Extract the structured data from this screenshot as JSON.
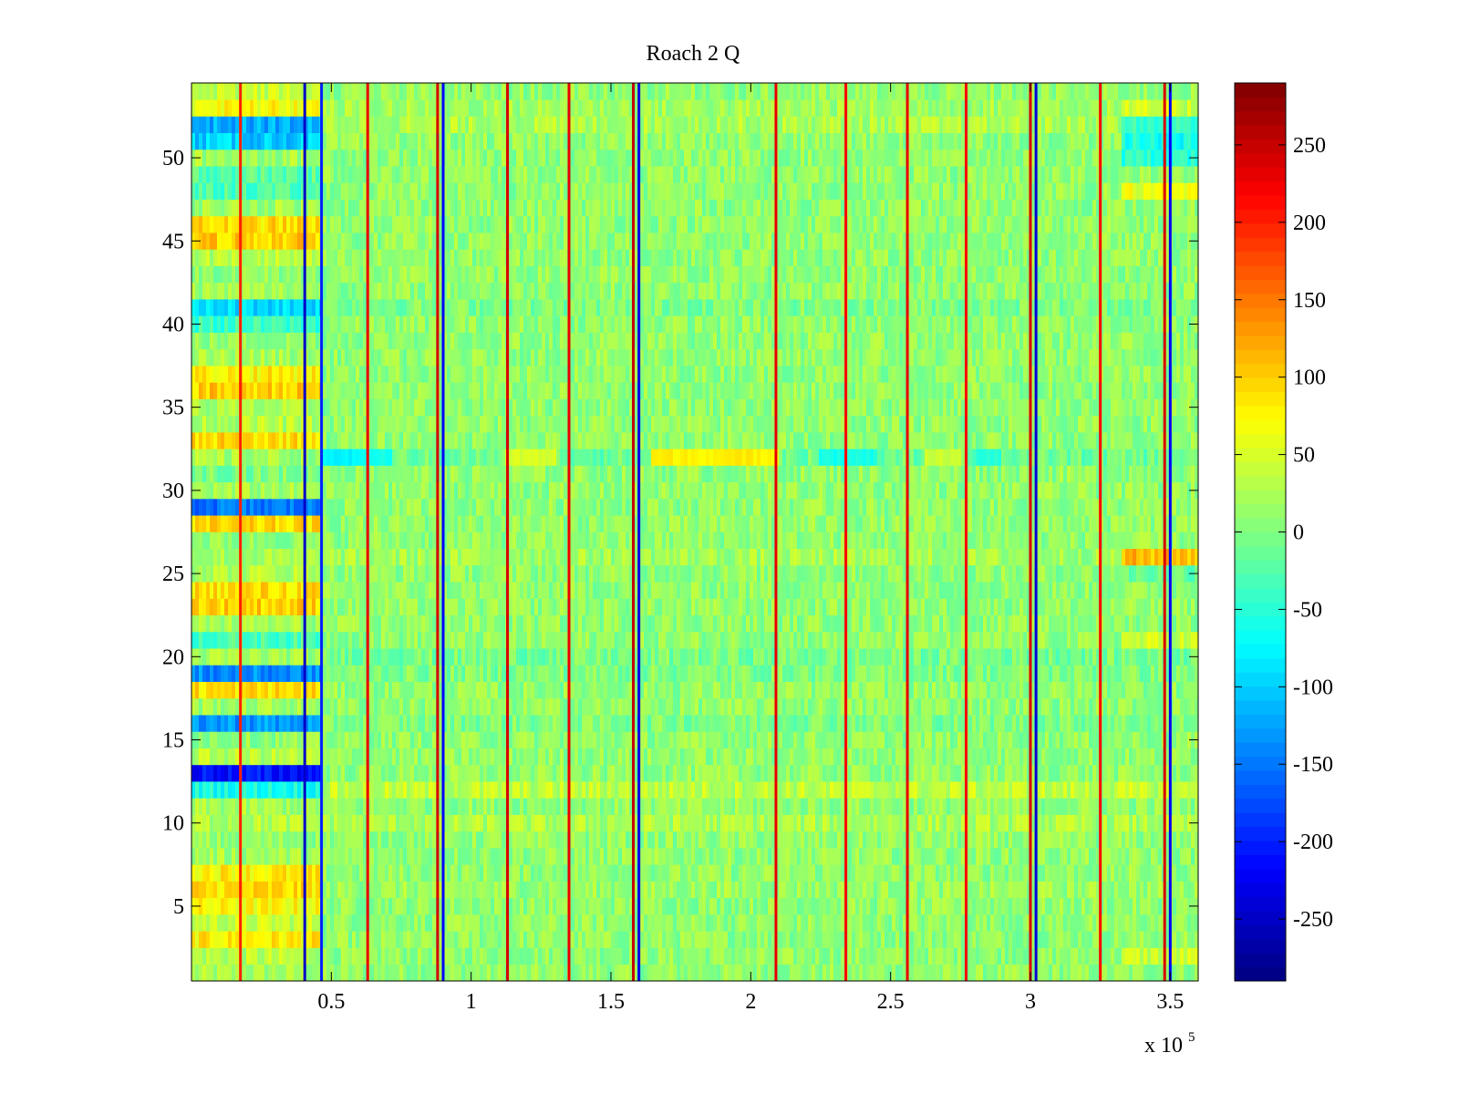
{
  "chart_data": {
    "type": "heatmap",
    "title": "Roach 2 Q",
    "xlabel": "",
    "ylabel": "",
    "x_multiplier_label": "x 10",
    "x_multiplier_exponent": "5",
    "xlim": [
      0,
      360000
    ],
    "ylim": [
      0.5,
      54.5
    ],
    "x_ticks": [
      {
        "value": 50000,
        "label": "0.5"
      },
      {
        "value": 100000,
        "label": "1"
      },
      {
        "value": 150000,
        "label": "1.5"
      },
      {
        "value": 200000,
        "label": "2"
      },
      {
        "value": 250000,
        "label": "2.5"
      },
      {
        "value": 300000,
        "label": "3"
      },
      {
        "value": 350000,
        "label": "3.5"
      }
    ],
    "y_ticks": [
      {
        "value": 5,
        "label": "5"
      },
      {
        "value": 10,
        "label": "10"
      },
      {
        "value": 15,
        "label": "15"
      },
      {
        "value": 20,
        "label": "20"
      },
      {
        "value": 25,
        "label": "25"
      },
      {
        "value": 30,
        "label": "30"
      },
      {
        "value": 35,
        "label": "35"
      },
      {
        "value": 40,
        "label": "40"
      },
      {
        "value": 45,
        "label": "45"
      },
      {
        "value": 50,
        "label": "50"
      }
    ],
    "rows": 54,
    "background_value": 10,
    "first_block_end": 46500,
    "row_offsets_first_block": {
      "1": 10,
      "2": 20,
      "3": 70,
      "4": 30,
      "5": 60,
      "6": 80,
      "7": 70,
      "8": 10,
      "9": 0,
      "10": 20,
      "11": 10,
      "12": -70,
      "13": -220,
      "14": 20,
      "15": 0,
      "16": -140,
      "17": 10,
      "18": 80,
      "19": -150,
      "20": 10,
      "21": -40,
      "22": 10,
      "23": 90,
      "24": 80,
      "25": 20,
      "26": 10,
      "27": 0,
      "28": 80,
      "29": -160,
      "30": 10,
      "31": -10,
      "32": 10,
      "33": 80,
      "34": 20,
      "35": 10,
      "36": 90,
      "37": 70,
      "38": 10,
      "39": 0,
      "40": -50,
      "41": -100,
      "42": 10,
      "43": 0,
      "44": 20,
      "45": 90,
      "46": 80,
      "47": 10,
      "48": -40,
      "49": -30,
      "50": 10,
      "51": -110,
      "52": -130,
      "53": 60,
      "54": 30
    },
    "row_offsets_global": {
      "6": 5,
      "10": 15,
      "12": 25,
      "16": -10,
      "19": -10,
      "20": -15,
      "26": 10,
      "32": -20,
      "41": -10,
      "52": 15,
      "53": 10
    },
    "late_region": {
      "x_start": 333000,
      "row_offsets": {
        "2": 30,
        "21": 30,
        "25": -20,
        "26": 90,
        "48": 50,
        "50": -60,
        "51": -70,
        "52": -70,
        "53": 20
      }
    },
    "row32_segments": [
      {
        "x_start": 46500,
        "x_end": 60000,
        "value": -80
      },
      {
        "x_start": 60000,
        "x_end": 72000,
        "value": -60
      },
      {
        "x_start": 112000,
        "x_end": 130000,
        "value": 50
      },
      {
        "x_start": 165000,
        "x_end": 210000,
        "value": 80
      },
      {
        "x_start": 225000,
        "x_end": 245000,
        "value": -60
      },
      {
        "x_start": 262000,
        "x_end": 275000,
        "value": 40
      },
      {
        "x_start": 280000,
        "x_end": 290000,
        "value": -50
      }
    ],
    "spikes": [
      {
        "x": 17500,
        "value": 200
      },
      {
        "x": 40500,
        "value": -250
      },
      {
        "x": 46500,
        "value": -200
      },
      {
        "x": 63000,
        "value": 230
      },
      {
        "x": 88000,
        "value": 240
      },
      {
        "x": 90000,
        "value": -220
      },
      {
        "x": 113000,
        "value": 240
      },
      {
        "x": 135000,
        "value": 230
      },
      {
        "x": 158000,
        "value": 250
      },
      {
        "x": 160000,
        "value": -230
      },
      {
        "x": 209000,
        "value": 230
      },
      {
        "x": 234000,
        "value": 220
      },
      {
        "x": 256000,
        "value": 230
      },
      {
        "x": 277000,
        "value": 220
      },
      {
        "x": 300000,
        "value": 240
      },
      {
        "x": 302000,
        "value": -240
      },
      {
        "x": 325000,
        "value": 220
      },
      {
        "x": 348000,
        "value": 240
      },
      {
        "x": 350000,
        "value": -220
      }
    ],
    "colorbar": {
      "colormap": "jet",
      "range": [
        -290,
        290
      ],
      "ticks": [
        {
          "value": -250,
          "label": "-250"
        },
        {
          "value": -200,
          "label": "-200"
        },
        {
          "value": -150,
          "label": "-150"
        },
        {
          "value": -100,
          "label": "-100"
        },
        {
          "value": -50,
          "label": "-50"
        },
        {
          "value": 0,
          "label": "0"
        },
        {
          "value": 50,
          "label": "50"
        },
        {
          "value": 100,
          "label": "100"
        },
        {
          "value": 150,
          "label": "150"
        },
        {
          "value": 200,
          "label": "200"
        },
        {
          "value": 250,
          "label": "250"
        }
      ]
    }
  }
}
